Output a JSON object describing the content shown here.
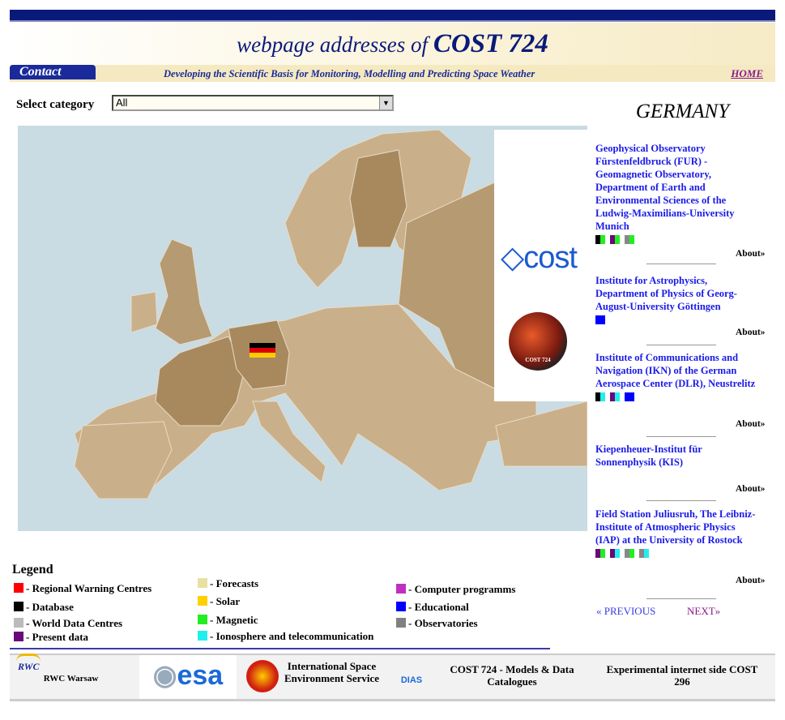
{
  "header": {
    "title_prefix": "webpage  addresses  of",
    "title_main": "COST 724",
    "contact": "Contact",
    "tagline": "Developing the Scientific Basis for Monitoring, Modelling and Predicting Space Weather",
    "home": "HOME"
  },
  "filter": {
    "label": "Select category",
    "selected": "All"
  },
  "country": "GERMANY",
  "map": {
    "selected_country": "Germany",
    "cost_logo": "COST",
    "cost_ball": "COST 724"
  },
  "entries": [
    {
      "name": "Geophysical Observatory Fürstenfeldbruck (FUR) - Geomagnetic Observatory, Department of Earth and Environmental Sciences of the Ludwig-Maximilians-University Munich",
      "swatches": [
        [
          "#000000",
          "#22ee22"
        ],
        [
          "#6a0a7a",
          "#22ee22"
        ],
        [
          "#888888",
          "#22ee22"
        ]
      ],
      "about": "About»"
    },
    {
      "name": "Institute for Astrophysics, Department of Physics of Georg-August-University Göttingen",
      "swatches": [
        [
          "#0000ff",
          "#0000ff"
        ]
      ],
      "about": "About»"
    },
    {
      "name": "Institute of Communications and Navigation (IKN) of the German Aerospace Center (DLR), Neustrelitz",
      "swatches": [
        [
          "#000000",
          "#22eeee"
        ],
        [
          "#6a0a7a",
          "#22eeee"
        ],
        [
          "#0000ff",
          "#0000ff"
        ]
      ],
      "about": "About»"
    },
    {
      "name": "Kiepenheuer-Institut für Sonnenphysik (KIS)",
      "swatches": [],
      "about": "About»"
    },
    {
      "name": "Field Station Juliusruh, The Leibniz-Institute of Atmospheric Physics (IAP) at the University of Rostock",
      "swatches": [
        [
          "#6a0a7a",
          "#22ee22"
        ],
        [
          "#6a0a7a",
          "#22eeee"
        ],
        [
          "#888888",
          "#22ee22"
        ],
        [
          "#888888",
          "#22eeee"
        ]
      ],
      "about": "About»"
    }
  ],
  "pager": {
    "prev": "« PREVIOUS",
    "next": "NEXT»"
  },
  "legend": {
    "title": "Legend",
    "items": [
      {
        "label": "- Regional Warning Centres",
        "color": "#ff0000"
      },
      {
        "label": "- Database",
        "color": "#000000"
      },
      {
        "label": "- World Data Centres",
        "color": "#bbbbbb"
      },
      {
        "label": "- Present data",
        "color": "#6a0a7a"
      },
      {
        "label": "- Forecasts",
        "color": "#e8e0a0"
      },
      {
        "label": "- Solar",
        "color": "#ffd000"
      },
      {
        "label": "- Magnetic",
        "color": "#22ee22"
      },
      {
        "label": "- Ionosphere and telecommunication",
        "color": "#22eeee"
      },
      {
        "label": "- Computer programms",
        "color": "#c030c0"
      },
      {
        "label": "- Educational",
        "color": "#0000ff"
      },
      {
        "label": "- Observatories",
        "color": "#808080"
      }
    ]
  },
  "footer": {
    "rwc": "RWC Warsaw",
    "rwc_logo": "RWC",
    "esa_logo": "esa",
    "ises": "International Space Environment Service",
    "dias_logo": "DIAS",
    "cost724": "COST 724 - Models & Data Catalogues",
    "cost296": "Experimental internet side COST 296"
  }
}
